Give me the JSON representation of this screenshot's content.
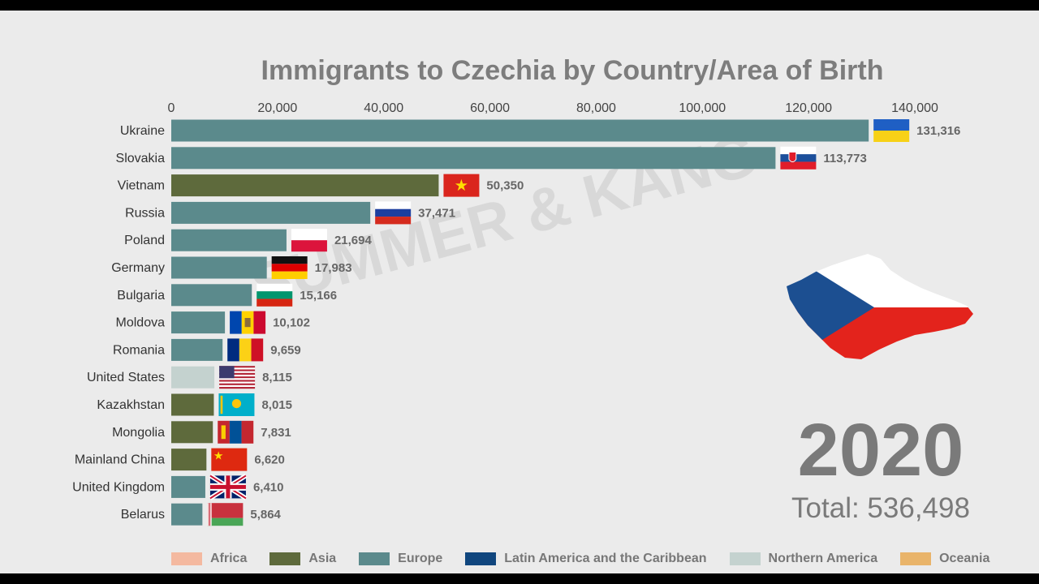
{
  "title": "Immigrants to Czechia by Country/Area of Birth",
  "watermark": "SUMMER & KANG",
  "year": "2020",
  "total": "Total: 536,498",
  "colors": {
    "Africa": "#f4b9a0",
    "Asia": "#5e6a3c",
    "Europe": "#5b8a8c",
    "Latin America and the Caribbean": "#10467e",
    "Northern America": "#c4d2cf",
    "Oceania": "#e9b46a"
  },
  "legend": [
    {
      "label": "Africa",
      "color": "#f4b9a0"
    },
    {
      "label": "Asia",
      "color": "#5e6a3c"
    },
    {
      "label": "Europe",
      "color": "#5b8a8c"
    },
    {
      "label": "Latin America and the Caribbean",
      "color": "#10467e"
    },
    {
      "label": "Northern America",
      "color": "#c4d2cf"
    },
    {
      "label": "Oceania",
      "color": "#e9b46a"
    }
  ],
  "chart_data": {
    "type": "bar",
    "orientation": "horizontal",
    "title": "Immigrants to Czechia by Country/Area of Birth",
    "xlim": [
      0,
      140000
    ],
    "x_ticks": [
      0,
      20000,
      40000,
      60000,
      80000,
      100000,
      120000,
      140000
    ],
    "x_tick_labels": [
      "0",
      "20,000",
      "40,000",
      "60,000",
      "80,000",
      "100,000",
      "120,000",
      "140,000"
    ],
    "x_axis_position": "top",
    "categories": [
      "Ukraine",
      "Slovakia",
      "Vietnam",
      "Russia",
      "Poland",
      "Germany",
      "Bulgaria",
      "Moldova",
      "Romania",
      "United States",
      "Kazakhstan",
      "Mongolia",
      "Mainland China",
      "United Kingdom",
      "Belarus"
    ],
    "values": [
      131316,
      113773,
      50350,
      37471,
      21694,
      17983,
      15166,
      10102,
      9659,
      8115,
      8015,
      7831,
      6620,
      6410,
      5864
    ],
    "value_labels": [
      "131,316",
      "113,773",
      "50,350",
      "37,471",
      "21,694",
      "17,983",
      "15,166",
      "10,102",
      "9,659",
      "8,115",
      "8,015",
      "7,831",
      "6,620",
      "6,410",
      "5,864"
    ],
    "regions": [
      "Europe",
      "Europe",
      "Asia",
      "Europe",
      "Europe",
      "Europe",
      "Europe",
      "Europe",
      "Europe",
      "Northern America",
      "Asia",
      "Asia",
      "Asia",
      "Europe",
      "Europe"
    ],
    "flags": [
      "ukraine-flag",
      "slovakia-flag",
      "vietnam-flag",
      "russia-flag",
      "poland-flag",
      "germany-flag",
      "bulgaria-flag",
      "moldova-flag",
      "romania-flag",
      "usa-flag",
      "kazakhstan-flag",
      "mongolia-flag",
      "china-flag",
      "uk-flag",
      "belarus-flag"
    ],
    "grid": false,
    "legend_position": "bottom"
  }
}
